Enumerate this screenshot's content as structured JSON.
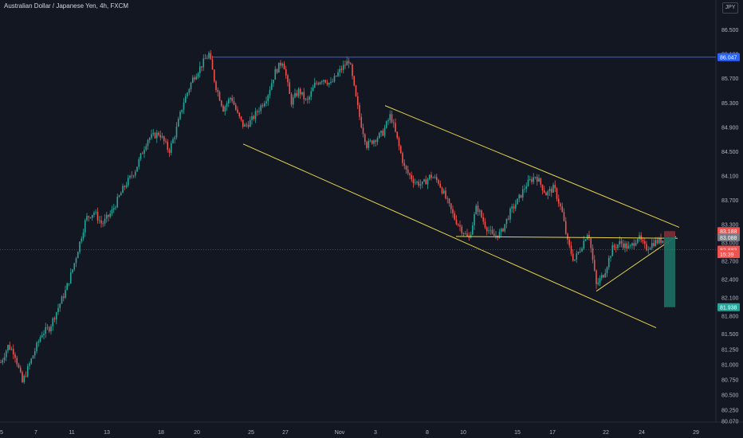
{
  "title": "Australian Dollar / Japanese Yen, 4h, FXCM",
  "currency": "JPY",
  "colors": {
    "background": "#131722",
    "up": "#26a69a",
    "down": "#ef5350",
    "resistance": "#2962ff",
    "pattern": "#e8d44d",
    "short_target": "#1c6b61"
  },
  "chart_data": {
    "type": "candlestick",
    "title": "Australian Dollar / Japanese Yen, 4h, FXCM",
    "ylim": [
      80.05,
      86.75
    ],
    "y_ticks": [
      "86.500",
      "86.100",
      "85.700",
      "85.300",
      "84.900",
      "84.500",
      "84.100",
      "83.700",
      "83.300",
      "83.000",
      "82.700",
      "82.400",
      "82.100",
      "81.800",
      "81.500",
      "81.250",
      "81.000",
      "80.750",
      "80.500",
      "80.250",
      "80.070"
    ],
    "x_ticks": [
      "5",
      "7",
      "11",
      "13",
      "18",
      "20",
      "25",
      "27",
      "Nov",
      "3",
      "8",
      "10",
      "15",
      "17",
      "22",
      "24",
      "29"
    ],
    "price_labels": [
      {
        "value": "86.047",
        "color": "#2962ff"
      },
      {
        "value": "83.188",
        "color": "#ef5350"
      },
      {
        "value": "83.088",
        "color": "#787b86"
      },
      {
        "value": "82.883",
        "color": "#ef5350"
      },
      {
        "value": "15:39",
        "color": "#ef5350"
      },
      {
        "value": "81.938",
        "color": "#26a69a"
      }
    ],
    "resistance_level": 86.047,
    "waypoints": [
      {
        "x": 0,
        "y": 81.0
      },
      {
        "x": 10,
        "y": 81.3
      },
      {
        "x": 18,
        "y": 81.2
      },
      {
        "x": 28,
        "y": 80.7
      },
      {
        "x": 40,
        "y": 81.1
      },
      {
        "x": 52,
        "y": 81.5
      },
      {
        "x": 62,
        "y": 81.6
      },
      {
        "x": 72,
        "y": 81.9
      },
      {
        "x": 82,
        "y": 82.2
      },
      {
        "x": 92,
        "y": 82.6
      },
      {
        "x": 100,
        "y": 83.0
      },
      {
        "x": 108,
        "y": 83.4
      },
      {
        "x": 118,
        "y": 83.5
      },
      {
        "x": 128,
        "y": 83.3
      },
      {
        "x": 140,
        "y": 83.5
      },
      {
        "x": 155,
        "y": 83.9
      },
      {
        "x": 170,
        "y": 84.2
      },
      {
        "x": 185,
        "y": 84.7
      },
      {
        "x": 200,
        "y": 84.8
      },
      {
        "x": 212,
        "y": 84.5
      },
      {
        "x": 220,
        "y": 84.8
      },
      {
        "x": 230,
        "y": 85.3
      },
      {
        "x": 242,
        "y": 85.7
      },
      {
        "x": 252,
        "y": 85.9
      },
      {
        "x": 262,
        "y": 86.1
      },
      {
        "x": 270,
        "y": 85.6
      },
      {
        "x": 280,
        "y": 85.2
      },
      {
        "x": 290,
        "y": 85.4
      },
      {
        "x": 298,
        "y": 85.1
      },
      {
        "x": 306,
        "y": 84.9
      },
      {
        "x": 315,
        "y": 85.0
      },
      {
        "x": 325,
        "y": 85.2
      },
      {
        "x": 335,
        "y": 85.4
      },
      {
        "x": 345,
        "y": 85.8
      },
      {
        "x": 355,
        "y": 86.0
      },
      {
        "x": 365,
        "y": 85.3
      },
      {
        "x": 375,
        "y": 85.5
      },
      {
        "x": 385,
        "y": 85.3
      },
      {
        "x": 395,
        "y": 85.6
      },
      {
        "x": 405,
        "y": 85.7
      },
      {
        "x": 415,
        "y": 85.6
      },
      {
        "x": 425,
        "y": 85.8
      },
      {
        "x": 438,
        "y": 86.0
      },
      {
        "x": 446,
        "y": 85.4
      },
      {
        "x": 452,
        "y": 85.0
      },
      {
        "x": 460,
        "y": 84.6
      },
      {
        "x": 470,
        "y": 84.7
      },
      {
        "x": 480,
        "y": 84.8
      },
      {
        "x": 490,
        "y": 85.1
      },
      {
        "x": 500,
        "y": 84.6
      },
      {
        "x": 508,
        "y": 84.2
      },
      {
        "x": 520,
        "y": 84.0
      },
      {
        "x": 530,
        "y": 83.95
      },
      {
        "x": 540,
        "y": 84.1
      },
      {
        "x": 550,
        "y": 84.0
      },
      {
        "x": 560,
        "y": 83.7
      },
      {
        "x": 570,
        "y": 83.4
      },
      {
        "x": 580,
        "y": 83.2
      },
      {
        "x": 588,
        "y": 83.05
      },
      {
        "x": 598,
        "y": 83.6
      },
      {
        "x": 608,
        "y": 83.3
      },
      {
        "x": 618,
        "y": 83.1
      },
      {
        "x": 628,
        "y": 83.15
      },
      {
        "x": 640,
        "y": 83.5
      },
      {
        "x": 650,
        "y": 83.7
      },
      {
        "x": 660,
        "y": 83.95
      },
      {
        "x": 672,
        "y": 84.1
      },
      {
        "x": 685,
        "y": 83.8
      },
      {
        "x": 695,
        "y": 83.9
      },
      {
        "x": 705,
        "y": 83.5
      },
      {
        "x": 712,
        "y": 83.0
      },
      {
        "x": 720,
        "y": 82.7
      },
      {
        "x": 728,
        "y": 82.9
      },
      {
        "x": 738,
        "y": 83.2
      },
      {
        "x": 748,
        "y": 82.3
      },
      {
        "x": 758,
        "y": 82.5
      },
      {
        "x": 768,
        "y": 82.9
      },
      {
        "x": 778,
        "y": 83.0
      },
      {
        "x": 790,
        "y": 82.9
      },
      {
        "x": 800,
        "y": 83.1
      },
      {
        "x": 810,
        "y": 82.9
      },
      {
        "x": 820,
        "y": 83.0
      },
      {
        "x": 832,
        "y": 83.05
      },
      {
        "x": 840,
        "y": 83.0
      }
    ],
    "trend_lines": [
      {
        "x1": 483,
        "y1": 85.25,
        "x2": 852,
        "y2": 83.25
      },
      {
        "x1": 305,
        "y1": 84.62,
        "x2": 823,
        "y2": 81.6
      },
      {
        "x1": 572,
        "y1": 83.1,
        "x2": 850,
        "y2": 83.07
      },
      {
        "x1": 748,
        "y1": 82.2,
        "x2": 848,
        "y2": 83.1
      }
    ],
    "short_position": {
      "entry": 83.088,
      "stop": 83.188,
      "target": 81.938,
      "x1": 833,
      "x2": 847
    },
    "grid": false,
    "legend": "none"
  }
}
